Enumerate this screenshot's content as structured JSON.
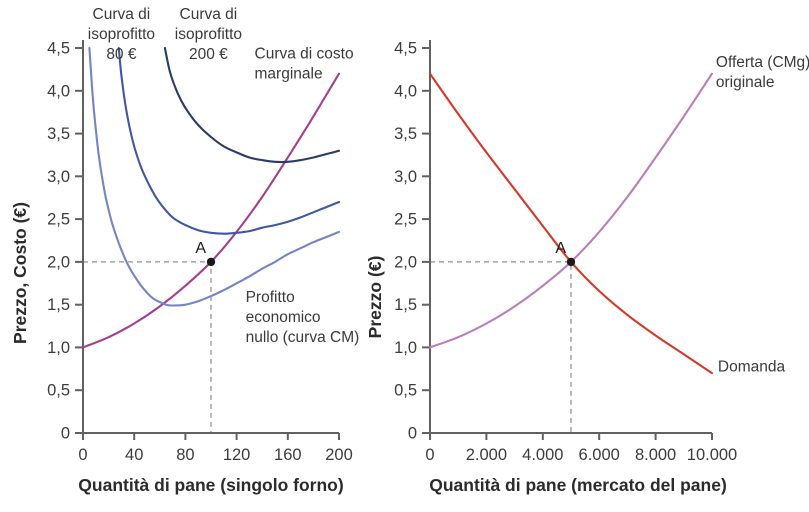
{
  "style": {
    "background": "#ffffff",
    "axis_color": "#616161",
    "tick_text_color": "#3c3c3c",
    "title_text_color": "#2b2b2b",
    "annotation_text_color": "#3a3a3a",
    "guide_color": "#a3a3a3",
    "marker_color": "#1a1a1a"
  },
  "chart_data": [
    {
      "type": "line",
      "title": "",
      "xlabel": "Quantità di pane (singolo forno)",
      "ylabel": "Prezzo, Costo (€)",
      "xlim": [
        0,
        200
      ],
      "ylim": [
        0,
        4.5
      ],
      "grid": false,
      "xticks": [
        0,
        40,
        80,
        120,
        160,
        200
      ],
      "xtick_labels": [
        "0",
        "40",
        "80",
        "120",
        "160",
        "200"
      ],
      "yticks": [
        0,
        0.5,
        1.0,
        1.5,
        2.0,
        2.5,
        3.0,
        3.5,
        4.0,
        4.5
      ],
      "ytick_labels": [
        "0",
        "0,5",
        "1,0",
        "1,5",
        "2,0",
        "2,5",
        "3,0",
        "3,5",
        "4,0",
        "4,5"
      ],
      "series": [
        {
          "name": "Curva di costo marginale",
          "color": "#a23e94",
          "x": [
            0,
            20,
            40,
            60,
            80,
            100,
            120,
            140,
            160,
            180,
            200
          ],
          "y": [
            1.0,
            1.12,
            1.28,
            1.48,
            1.72,
            2.0,
            2.35,
            2.76,
            3.22,
            3.7,
            4.2
          ]
        },
        {
          "name": "Curva di isoprofitto 200 €",
          "color": "#2b3a6b",
          "x": [
            64,
            68,
            74,
            80,
            90,
            100,
            110,
            120,
            130,
            140,
            150,
            160,
            170,
            180,
            190,
            200
          ],
          "y": [
            4.5,
            4.22,
            3.97,
            3.8,
            3.6,
            3.46,
            3.35,
            3.28,
            3.22,
            3.19,
            3.17,
            3.17,
            3.19,
            3.22,
            3.26,
            3.3
          ]
        },
        {
          "name": "Curva di isoprofitto 80 €",
          "color": "#4057a1",
          "x": [
            28,
            30,
            33,
            36,
            40,
            45,
            50,
            56,
            62,
            70,
            80,
            90,
            100,
            110,
            120,
            130,
            140,
            150,
            160,
            170,
            180,
            190,
            200
          ],
          "y": [
            4.5,
            4.18,
            3.85,
            3.6,
            3.35,
            3.12,
            2.95,
            2.78,
            2.65,
            2.52,
            2.43,
            2.37,
            2.34,
            2.33,
            2.34,
            2.36,
            2.4,
            2.43,
            2.47,
            2.52,
            2.58,
            2.64,
            2.7
          ]
        },
        {
          "name": "Profitto economico nullo (curva CM)",
          "color": "#7584c6",
          "x": [
            5,
            7,
            9,
            12,
            15,
            18,
            22,
            26,
            30,
            35,
            40,
            45,
            50,
            55,
            60,
            65,
            70,
            80,
            90,
            100,
            110,
            120,
            130,
            140,
            150,
            160,
            170,
            180,
            190,
            200
          ],
          "y": [
            4.5,
            4.05,
            3.7,
            3.28,
            2.98,
            2.74,
            2.49,
            2.3,
            2.14,
            1.97,
            1.84,
            1.73,
            1.64,
            1.57,
            1.53,
            1.5,
            1.49,
            1.5,
            1.54,
            1.6,
            1.67,
            1.75,
            1.83,
            1.92,
            2.0,
            2.09,
            2.16,
            2.23,
            2.29,
            2.35
          ]
        }
      ],
      "marker": {
        "label": "A",
        "x": 100,
        "y": 2.0,
        "guides": true
      },
      "annotations": [
        {
          "lines": [
            "Curva di",
            "isoprofitto",
            "80 €"
          ],
          "x": 30,
          "y": 4.84,
          "anchor": "middle"
        },
        {
          "lines": [
            "Curva di",
            "isoprofitto",
            "200 €"
          ],
          "x": 98,
          "y": 4.84,
          "anchor": "middle"
        },
        {
          "lines": [
            "Curva di costo",
            "marginale"
          ],
          "x": 134,
          "y": 4.38,
          "anchor": "start"
        },
        {
          "lines": [
            "Profitto",
            "economico",
            "nullo (curva CM)"
          ],
          "x": 127,
          "y": 1.53,
          "anchor": "start"
        }
      ]
    },
    {
      "type": "line",
      "title": "",
      "xlabel": "Quantità di pane (mercato del pane)",
      "ylabel": "Prezzo (€)",
      "xlim": [
        0,
        10000
      ],
      "ylim": [
        0,
        4.5
      ],
      "grid": false,
      "xticks": [
        0,
        2000,
        4000,
        6000,
        8000,
        10000
      ],
      "xtick_labels": [
        "0",
        "2.000",
        "4.000",
        "6.000",
        "8.000",
        "10.000"
      ],
      "yticks": [
        0,
        0.5,
        1.0,
        1.5,
        2.0,
        2.5,
        3.0,
        3.5,
        4.0,
        4.5
      ],
      "ytick_labels": [
        "0",
        "0,5",
        "1,0",
        "1,5",
        "2,0",
        "2,5",
        "3,0",
        "3,5",
        "4,0",
        "4,5"
      ],
      "series": [
        {
          "name": "Offerta (CMg) originale",
          "color": "#bb7cba",
          "x": [
            0,
            1000,
            2000,
            3000,
            4000,
            5000,
            6000,
            7000,
            8000,
            9000,
            10000
          ],
          "y": [
            1.0,
            1.12,
            1.28,
            1.48,
            1.72,
            2.0,
            2.35,
            2.76,
            3.22,
            3.7,
            4.2
          ]
        },
        {
          "name": "Domanda",
          "color": "#d53828",
          "x": [
            0,
            1000,
            2000,
            3000,
            4000,
            5000,
            6000,
            7000,
            8000,
            9000,
            10000
          ],
          "y": [
            4.2,
            3.73,
            3.28,
            2.85,
            2.42,
            2.0,
            1.66,
            1.38,
            1.14,
            0.92,
            0.7
          ]
        }
      ],
      "marker": {
        "label": "A",
        "x": 5000,
        "y": 2.0,
        "guides": true
      },
      "annotations": [
        {
          "lines": [
            "Offerta (CMg)",
            "originale"
          ],
          "x": 10140,
          "y": 4.28,
          "anchor": "start"
        },
        {
          "lines": [
            "Domanda"
          ],
          "x": 10210,
          "y": 0.72,
          "anchor": "start"
        }
      ]
    }
  ]
}
